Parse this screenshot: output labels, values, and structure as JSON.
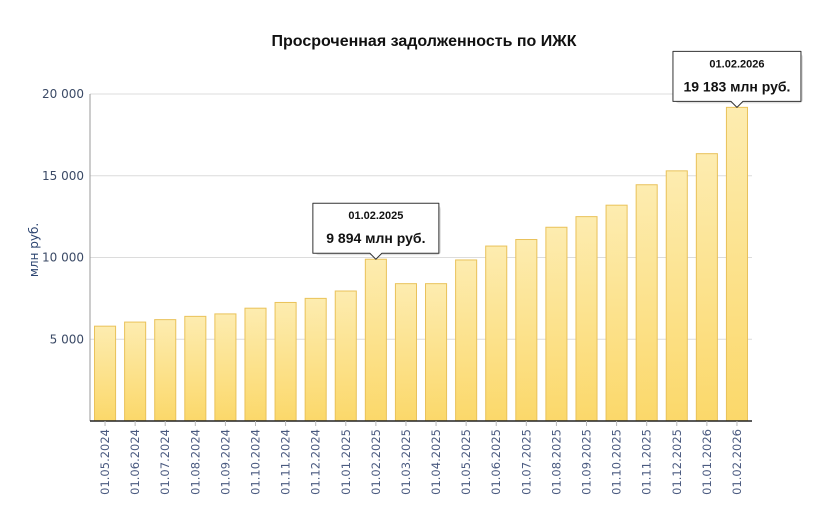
{
  "chart_data": {
    "type": "bar",
    "title": "Просроченная задолженность по ИЖК",
    "ylabel": "млн руб.",
    "xlabel": "",
    "ylim": [
      0,
      20000
    ],
    "yticks": [
      {
        "value": 5000,
        "label": "5 000"
      },
      {
        "value": 10000,
        "label": "10 000"
      },
      {
        "value": 15000,
        "label": "15 000"
      },
      {
        "value": 20000,
        "label": "20 000"
      }
    ],
    "grid": true,
    "categories": [
      "01.05.2024",
      "01.06.2024",
      "01.07.2024",
      "01.08.2024",
      "01.09.2024",
      "01.10.2024",
      "01.11.2024",
      "01.12.2024",
      "01.01.2025",
      "01.02.2025",
      "01.03.2025",
      "01.04.2025",
      "01.05.2025",
      "01.06.2025",
      "01.07.2025",
      "01.08.2025",
      "01.09.2025",
      "01.10.2025",
      "01.11.2025",
      "01.12.2025",
      "01.01.2026",
      "01.02.2026"
    ],
    "values": [
      5800,
      6050,
      6200,
      6400,
      6550,
      6900,
      7250,
      7500,
      7950,
      9894,
      8400,
      8400,
      9850,
      10700,
      11100,
      11850,
      12500,
      13200,
      14450,
      15300,
      16350,
      19183
    ],
    "annotations": [
      {
        "category_index": 9,
        "date": "01.02.2025",
        "value_text": "9 894 млн руб."
      },
      {
        "category_index": 21,
        "date": "01.02.2026",
        "value_text": "19 183 млн руб."
      }
    ],
    "colors": {
      "bar_top": "#fde9a6",
      "bar_bottom": "#fbd86a",
      "bar_stroke": "#e9c25a",
      "grid": "#dcdcdc",
      "axis": "#222222",
      "tooltip_border": "#333333"
    }
  }
}
